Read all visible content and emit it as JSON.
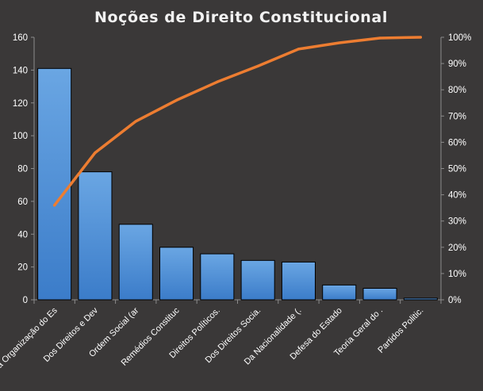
{
  "chart_data": {
    "type": "bar",
    "title": "Noções de Direito  Constitucional",
    "categories": [
      "Da Organização do Es",
      "Dos Direitos e Dev",
      "Ordem Social (ar",
      "Remédios Constituc",
      "Direitos Políticos.",
      "Dos Direitos Socia.",
      "Da Nacionalidade (.",
      "Defesa do Estado",
      "Teoria Geral do .",
      "Partidos Politic."
    ],
    "series": [
      {
        "type": "bar",
        "axis": "left",
        "values": [
          141,
          78,
          46,
          32,
          28,
          24,
          23,
          9,
          7,
          1
        ]
      },
      {
        "type": "line",
        "axis": "right",
        "values": [
          36,
          56,
          68,
          76,
          83,
          89,
          95.5,
          97.9,
          99.7,
          100
        ]
      }
    ],
    "y_left": {
      "min": 0,
      "max": 160,
      "step": 20
    },
    "y_right": {
      "min": 0,
      "max": 100,
      "step": 10,
      "unit": "%"
    },
    "grid": false,
    "legend": "none",
    "colors": {
      "background": "#3a3838",
      "bar_top": "#6aa6e3",
      "bar_bottom": "#3b7cc9",
      "bar_edge": "#000000",
      "line": "#ed7d31",
      "text": "#ffffff",
      "axis": "#8c8c8c"
    }
  }
}
